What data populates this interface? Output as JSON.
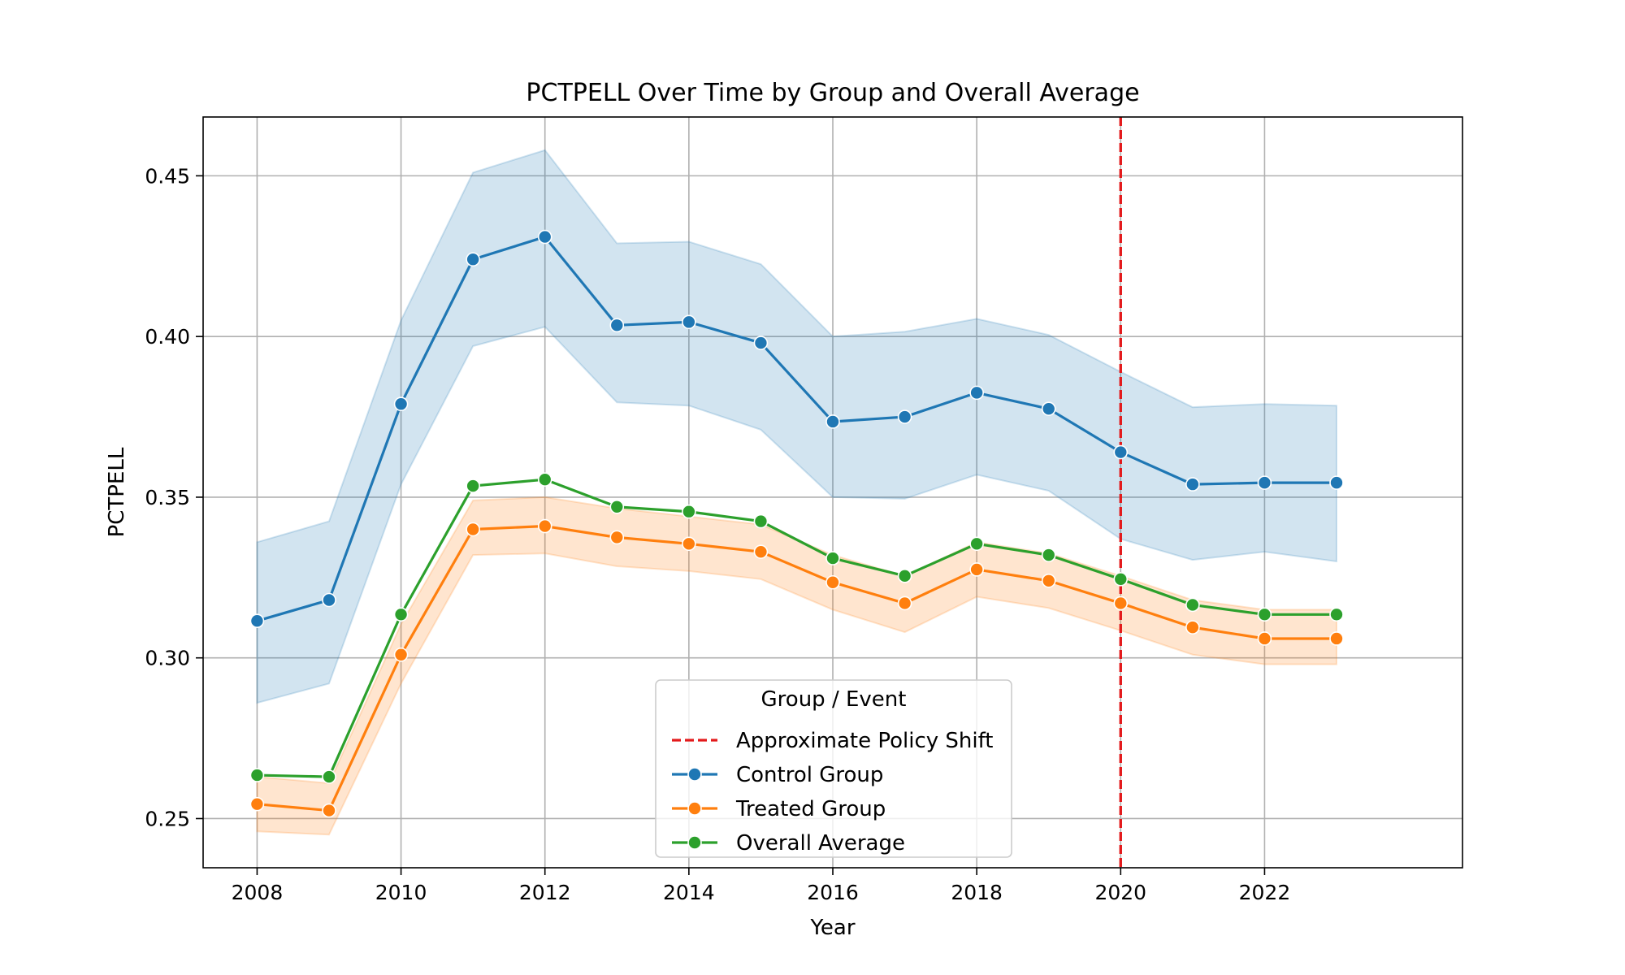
{
  "chart_data": {
    "type": "line",
    "title": "PCTPELL Over Time by Group and Overall Average",
    "xlabel": "Year",
    "ylabel": "PCTPELL",
    "xlim": [
      2007.25,
      2024.75
    ],
    "ylim": [
      0.2347,
      0.4683
    ],
    "x_ticks": [
      2008,
      2010,
      2012,
      2014,
      2016,
      2018,
      2020,
      2022
    ],
    "y_ticks": [
      0.25,
      0.3,
      0.35,
      0.4,
      0.45
    ],
    "y_tick_labels": [
      "0.25",
      "0.30",
      "0.35",
      "0.40",
      "0.45"
    ],
    "grid": true,
    "x": [
      2008,
      2009,
      2010,
      2011,
      2012,
      2013,
      2014,
      2015,
      2016,
      2017,
      2018,
      2019,
      2020,
      2021,
      2022,
      2023
    ],
    "series": [
      {
        "name": "Control Group",
        "color": "#1f77b4",
        "values": [
          0.3115,
          0.318,
          0.379,
          0.424,
          0.431,
          0.4035,
          0.4045,
          0.398,
          0.3735,
          0.375,
          0.3825,
          0.3775,
          0.364,
          0.354,
          0.3545,
          0.3545
        ],
        "ci_lower": [
          0.286,
          0.292,
          0.354,
          0.397,
          0.403,
          0.3795,
          0.3785,
          0.371,
          0.35,
          0.3495,
          0.357,
          0.352,
          0.337,
          0.3305,
          0.333,
          0.33
        ],
        "ci_upper": [
          0.336,
          0.3425,
          0.405,
          0.451,
          0.458,
          0.429,
          0.4295,
          0.4225,
          0.4,
          0.4015,
          0.4055,
          0.4005,
          0.389,
          0.378,
          0.379,
          0.3785
        ]
      },
      {
        "name": "Treated Group",
        "color": "#ff7f0e",
        "values": [
          0.2545,
          0.2525,
          0.301,
          0.34,
          0.341,
          0.3375,
          0.3355,
          0.333,
          0.3235,
          0.317,
          0.3275,
          0.324,
          0.317,
          0.3095,
          0.306,
          0.306
        ],
        "ci_lower": [
          0.246,
          0.245,
          0.292,
          0.332,
          0.3325,
          0.3285,
          0.327,
          0.3245,
          0.315,
          0.308,
          0.319,
          0.3155,
          0.3085,
          0.301,
          0.298,
          0.298
        ],
        "ci_upper": [
          0.263,
          0.261,
          0.3105,
          0.349,
          0.35,
          0.3465,
          0.344,
          0.3415,
          0.332,
          0.3255,
          0.336,
          0.3325,
          0.3255,
          0.318,
          0.315,
          0.315
        ]
      },
      {
        "name": "Overall Average",
        "color": "#2ca02c",
        "values": [
          0.2635,
          0.263,
          0.3135,
          0.3535,
          0.3555,
          0.347,
          0.3455,
          0.3425,
          0.331,
          0.3255,
          0.3355,
          0.332,
          0.3245,
          0.3165,
          0.3135,
          0.3135
        ]
      }
    ],
    "vlines": [
      {
        "name": "Approximate Policy Shift",
        "x": 2020,
        "color": "#e31a1c",
        "style": "dashed"
      }
    ],
    "legend": {
      "title": "Group / Event",
      "position": "bottom-center",
      "entries": [
        "Approximate Policy Shift",
        "Control Group",
        "Treated Group",
        "Overall Average"
      ]
    }
  }
}
